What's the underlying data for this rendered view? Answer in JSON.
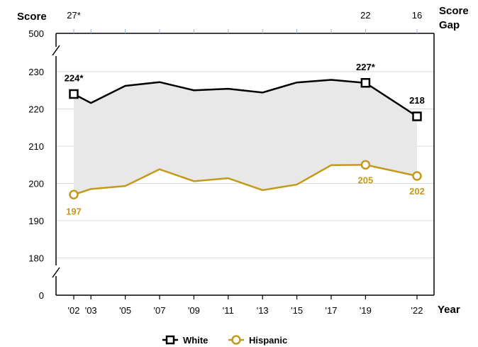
{
  "chart_data": {
    "type": "line",
    "y_axis_title": "Score",
    "gap_axis_title_line1": "Score",
    "gap_axis_title_line2": "Gap",
    "x_axis_title": "Year",
    "x_tick_labels": [
      "'02",
      "'03",
      "'05",
      "'07",
      "'09",
      "'11",
      "'13",
      "'15",
      "'17",
      "'19",
      "'22"
    ],
    "x_years": [
      2002,
      2003,
      2005,
      2007,
      2009,
      2011,
      2013,
      2015,
      2017,
      2019,
      2022
    ],
    "y_ticks_main": [
      180,
      190,
      200,
      210,
      220,
      230
    ],
    "y_tick_labels": {
      "top": "500",
      "main": [
        "180",
        "190",
        "200",
        "210",
        "220",
        "230"
      ],
      "bottom": "0"
    },
    "ylim_shown": [
      175,
      232
    ],
    "axis_breaks": true,
    "grid": "horizontal",
    "legend_position": "bottom-center",
    "score_gaps": [
      {
        "year": 2002,
        "label": "27*"
      },
      {
        "year": 2019,
        "label": "22"
      },
      {
        "year": 2022,
        "label": "16"
      }
    ],
    "series": [
      {
        "name": "White",
        "color": "#000000",
        "marker": "square",
        "values": [
          224,
          221.6,
          226.2,
          227.2,
          225,
          225.4,
          224.4,
          227.1,
          227.8,
          227,
          218
        ],
        "point_labels": [
          {
            "year": 2002,
            "text": "224*"
          },
          {
            "year": 2019,
            "text": "227*"
          },
          {
            "year": 2022,
            "text": "218"
          }
        ]
      },
      {
        "name": "Hispanic",
        "color": "#c49a1a",
        "marker": "circle",
        "values": [
          197,
          198.5,
          199.3,
          203.8,
          200.6,
          201.4,
          198.2,
          199.7,
          204.9,
          205,
          202
        ],
        "point_labels": [
          {
            "year": 2002,
            "text": "197"
          },
          {
            "year": 2019,
            "text": "205"
          },
          {
            "year": 2022,
            "text": "202"
          }
        ]
      }
    ],
    "shaded_gap_color": "#e8e8e8"
  }
}
